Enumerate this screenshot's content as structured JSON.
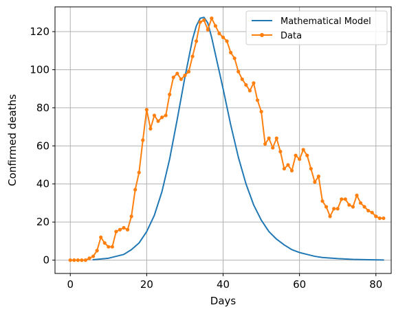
{
  "chart_data": {
    "type": "line",
    "title": "",
    "xlabel": "Days",
    "ylabel": "Confirmed deaths",
    "xlim": [
      -4,
      84
    ],
    "ylim": [
      -7,
      133
    ],
    "xticks": [
      0,
      20,
      40,
      60,
      80
    ],
    "yticks": [
      0,
      20,
      40,
      60,
      80,
      100,
      120
    ],
    "grid": true,
    "legend_position": "top-right",
    "series": [
      {
        "name": "Mathematical Model",
        "color": "#1f77b4",
        "marker": "none",
        "x": [
          6,
          10,
          14,
          16,
          18,
          20,
          22,
          24,
          26,
          28,
          30,
          32,
          33,
          34,
          35,
          36,
          37,
          38,
          40,
          42,
          44,
          46,
          48,
          50,
          52,
          54,
          56,
          58,
          60,
          62,
          64,
          66,
          70,
          74,
          78,
          82
        ],
        "y": [
          0.2,
          1,
          3,
          5.5,
          9,
          15,
          23.5,
          36,
          53,
          74,
          96,
          116,
          123,
          127,
          127.5,
          124.5,
          117,
          108,
          90,
          71,
          54,
          40,
          29,
          21,
          15,
          11,
          8,
          5.5,
          4,
          3,
          2,
          1.4,
          0.8,
          0.4,
          0.2,
          0.1
        ]
      },
      {
        "name": "Data",
        "color": "#ff7f0e",
        "marker": "circle",
        "x": [
          0,
          1,
          2,
          3,
          4,
          5,
          6,
          7,
          8,
          9,
          10,
          11,
          12,
          13,
          14,
          15,
          16,
          17,
          18,
          19,
          20,
          21,
          22,
          23,
          24,
          25,
          26,
          27,
          28,
          29,
          30,
          31,
          32,
          33,
          34,
          35,
          36,
          37,
          38,
          39,
          40,
          41,
          42,
          43,
          44,
          45,
          46,
          47,
          48,
          49,
          50,
          51,
          52,
          53,
          54,
          55,
          56,
          57,
          58,
          59,
          60,
          61,
          62,
          63,
          64,
          65,
          66,
          67,
          68,
          69,
          70,
          71,
          72,
          73,
          74,
          75,
          76,
          77,
          78,
          79,
          80,
          81,
          82
        ],
        "y": [
          0,
          0,
          0,
          0,
          0,
          1,
          2,
          5,
          12,
          9,
          7,
          7,
          15,
          16,
          17,
          16,
          23,
          37,
          46,
          63,
          79,
          69,
          76,
          73,
          75,
          76,
          87,
          96,
          98,
          95,
          97,
          99,
          107,
          115,
          125,
          126,
          121,
          127,
          123,
          119,
          117,
          115,
          109,
          106,
          99,
          95,
          92,
          89,
          93,
          84,
          78,
          61,
          64,
          59,
          64,
          57,
          48,
          50,
          47,
          55,
          53,
          58,
          55,
          48,
          41,
          44,
          31,
          28,
          23,
          27,
          27,
          32,
          32,
          29,
          28,
          34,
          30,
          28,
          26,
          25,
          23,
          22,
          22
        ]
      }
    ]
  }
}
